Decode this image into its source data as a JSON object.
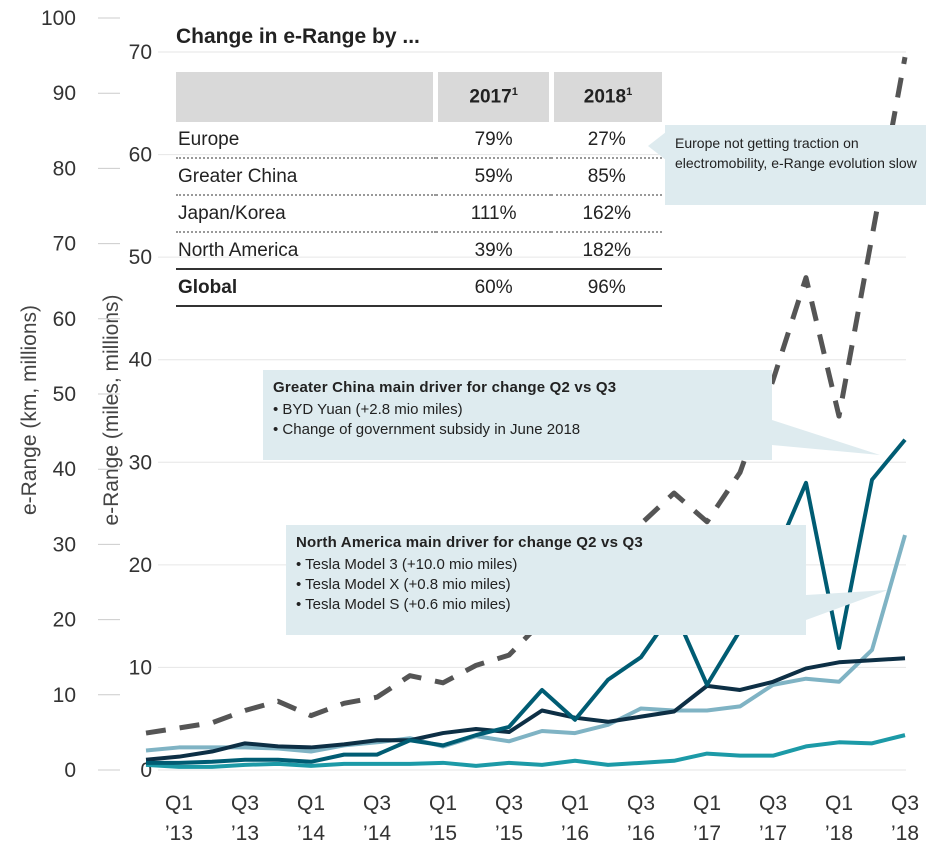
{
  "chart_data": {
    "type": "line",
    "title": "Change in e-Range by ...",
    "ylabel": "e-Range (km, millions)",
    "y2label": "e-Range (miles, millions)",
    "categories": [
      null,
      "Q1 ’13",
      null,
      "Q3 ’13",
      null,
      "Q1 ’14",
      null,
      "Q3 ’14",
      null,
      "Q1 ’15",
      null,
      "Q3 ’15",
      null,
      "Q1 ’16",
      null,
      "Q3 ’16",
      null,
      "Q1 ’17",
      null,
      "Q3 ’17",
      null,
      "Q1 ’18",
      null,
      "Q3 ’18"
    ],
    "ylim": [
      0,
      100
    ],
    "yticks": [
      0,
      10,
      20,
      30,
      40,
      50,
      60,
      70,
      80,
      90,
      100
    ],
    "y2lim": [
      0,
      70
    ],
    "y2ticks": [
      0,
      10,
      20,
      30,
      40,
      50,
      60,
      70
    ],
    "grid": true,
    "series": [
      {
        "color": "#7fb3c4",
        "axis": "y2",
        "values": [
          1.9,
          2.2,
          2.2,
          2.2,
          2.1,
          1.8,
          2.4,
          2.7,
          3.1,
          2.3,
          3.3,
          2.8,
          3.8,
          3.6,
          4.4,
          6,
          5.8,
          5.8,
          6.2,
          8.3,
          8.9,
          8.6,
          11.7,
          22.9
        ]
      },
      {
        "color": "#1c9aa7",
        "axis": "y2",
        "values": [
          0.5,
          0.3,
          0.3,
          0.5,
          0.6,
          0.4,
          0.6,
          0.6,
          0.6,
          0.7,
          0.4,
          0.7,
          0.5,
          0.9,
          0.5,
          0.7,
          0.9,
          1.6,
          1.4,
          1.4,
          2.3,
          2.7,
          2.6,
          3.4
        ]
      },
      {
        "color": "#0d2f45",
        "axis": "y2",
        "values": [
          1,
          1.3,
          1.8,
          2.6,
          2.3,
          2.2,
          2.5,
          2.9,
          2.9,
          3.6,
          4,
          3.7,
          5.8,
          5.1,
          4.7,
          5.2,
          5.7,
          8.2,
          7.8,
          8.6,
          9.9,
          10.5,
          10.7,
          10.9
        ]
      },
      {
        "color": "#005c73",
        "axis": "y2",
        "values": [
          0.7,
          0.7,
          0.8,
          1,
          1,
          0.8,
          1.5,
          1.5,
          2.9,
          2.4,
          3.4,
          4.2,
          7.8,
          4.9,
          8.8,
          11,
          15.6,
          8.3,
          13.6,
          20.5,
          28,
          11.9,
          28.3,
          32.2
        ]
      },
      {
        "color": "#555555",
        "axis": "y2",
        "dashed": true,
        "values": [
          3.6,
          4.1,
          4.6,
          5.8,
          6.7,
          5.3,
          6.5,
          7.1,
          9.2,
          8.5,
          10.2,
          11.2,
          14.5,
          18,
          22,
          24,
          27,
          24.2,
          29,
          38,
          48,
          34.5,
          52,
          69.5
        ]
      }
    ]
  },
  "table": {
    "headers": [
      "2017",
      "2018"
    ],
    "footnote_mark": "1",
    "rows": [
      [
        "Europe",
        "79%",
        "27%"
      ],
      [
        "Greater China",
        "59%",
        "85%"
      ],
      [
        "Japan/Korea",
        "111%",
        "162%"
      ],
      [
        "North America",
        "39%",
        "182%"
      ],
      [
        "Global",
        "60%",
        "96%"
      ]
    ]
  },
  "callouts": [
    {
      "text": "Europe not getting traction on electromobility, e-Range evolution slow"
    },
    {
      "title": "Greater China main driver for change Q2 vs Q3",
      "bullets": [
        "BYD Yuan (+2.8 mio miles)",
        "Change of government subsidy in June 2018"
      ]
    },
    {
      "title": "North America main driver for change Q2 vs Q3",
      "bullets": [
        "Tesla Model 3 (+10.0 mio miles)",
        "Tesla Model X (+0.8 mio miles)",
        "Tesla Model S (+0.6 mio miles)"
      ]
    }
  ]
}
